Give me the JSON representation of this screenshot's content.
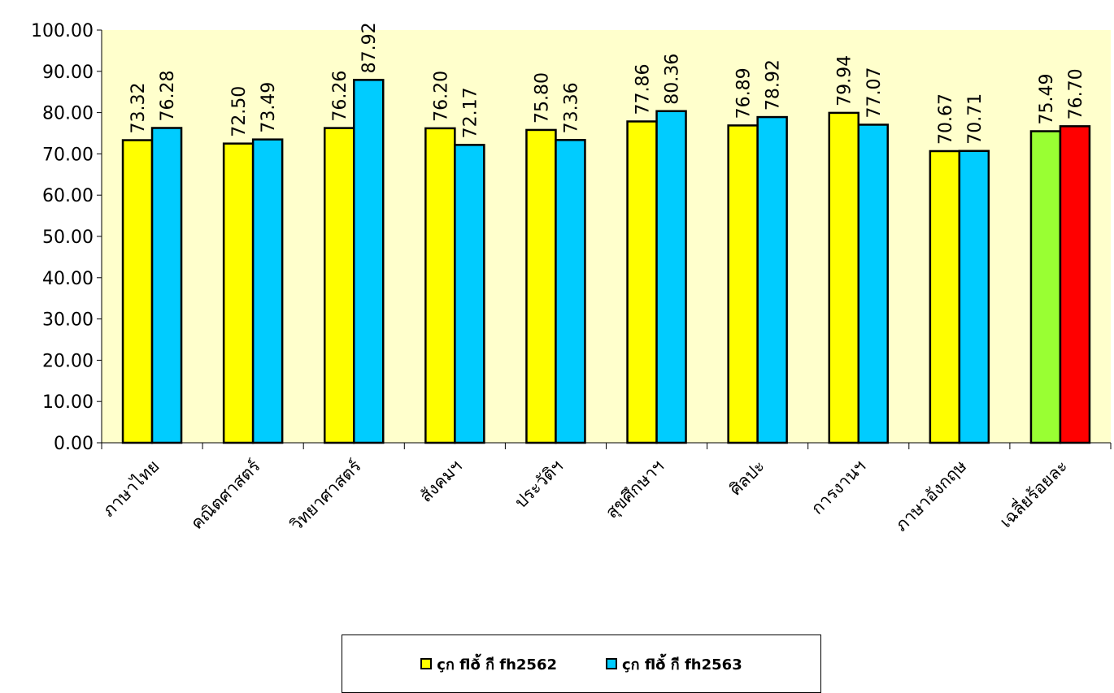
{
  "chart_data": {
    "type": "bar",
    "categories": [
      "ภาษาไทย",
      "คณิตศาสตร์",
      "วิทยาศาสตร์",
      "สังคมฯ",
      "ประวัติฯ",
      "สุขศึกษาฯ",
      "ศิลปะ",
      "การงานฯ",
      "ภาษาอังกฤษ",
      "เฉลี่ยร้อยละ"
    ],
    "series": [
      {
        "name": "çก flð้ กี fh2562",
        "values": [
          73.32,
          72.5,
          76.26,
          76.2,
          75.8,
          77.86,
          76.89,
          79.94,
          70.67,
          75.49
        ],
        "color": "#FFFF00",
        "last_bar_color": "#99FF33"
      },
      {
        "name": "çก flð้ กี fh2563",
        "values": [
          76.28,
          73.49,
          87.92,
          72.17,
          73.36,
          80.36,
          78.92,
          77.07,
          70.71,
          76.7
        ],
        "color": "#00CCFF",
        "last_bar_color": "#FF0000"
      }
    ],
    "ylim": [
      0,
      100
    ],
    "yticks": [
      "0.00",
      "10.00",
      "20.00",
      "30.00",
      "40.00",
      "50.00",
      "60.00",
      "70.00",
      "80.00",
      "90.00",
      "100.00"
    ],
    "value_labels": [
      [
        "73.32",
        "72.50",
        "76.26",
        "76.20",
        "75.80",
        "77.86",
        "76.89",
        "79.94",
        "70.67",
        "75.49"
      ],
      [
        "76.28",
        "73.49",
        "87.92",
        "72.17",
        "73.36",
        "80.36",
        "78.92",
        "77.07",
        "70.71",
        "76.70"
      ]
    ],
    "plot_background": "#FFFFCC",
    "grid": false,
    "legend": "bottom"
  }
}
